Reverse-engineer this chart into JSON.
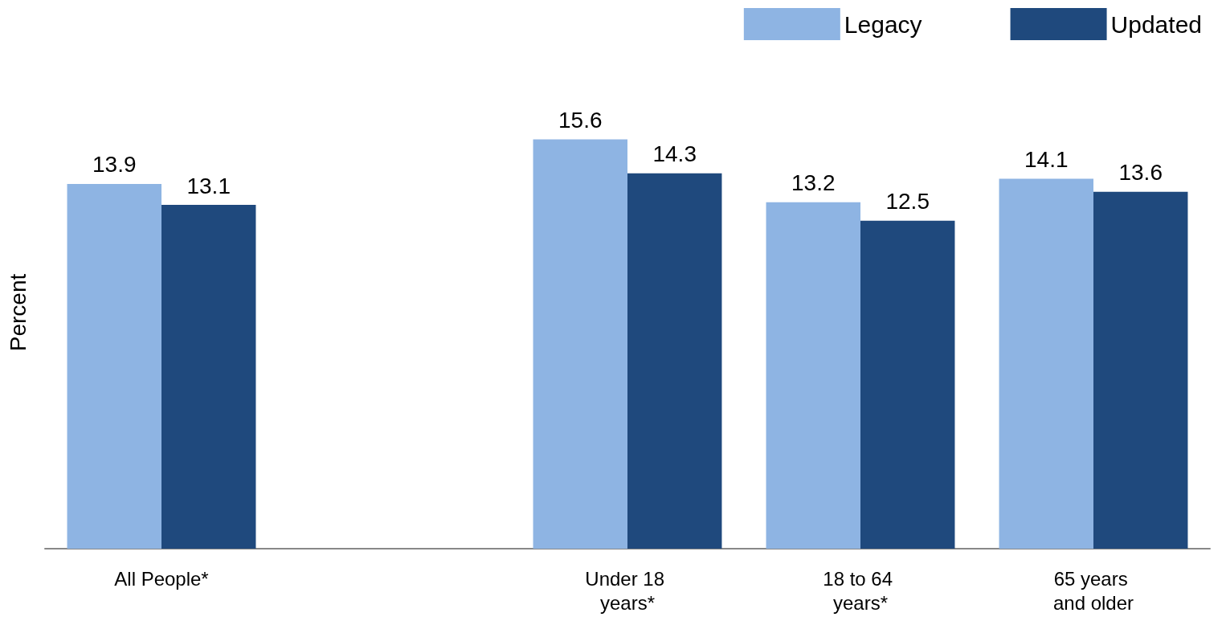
{
  "chart_data": {
    "type": "bar",
    "ylabel": "Percent",
    "categories": [
      "All People*",
      null,
      "Under 18 years*",
      "18 to 64 years*",
      "65 years and older"
    ],
    "series": [
      {
        "name": "Legacy",
        "color": "#8eb4e3",
        "values": [
          13.9,
          null,
          15.6,
          13.2,
          14.1
        ]
      },
      {
        "name": "Updated",
        "color": "#1f497d",
        "values": [
          13.1,
          null,
          14.3,
          12.5,
          13.6
        ]
      }
    ],
    "data_labels": true,
    "legend": "top right",
    "grid": false,
    "tick_labels": "x"
  }
}
